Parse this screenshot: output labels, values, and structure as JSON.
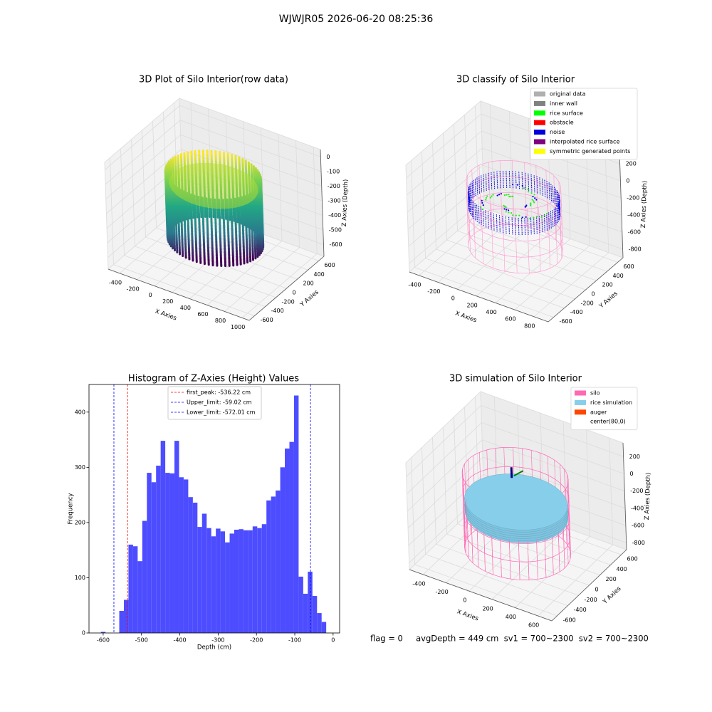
{
  "title": "WJWJR05 2026-06-20 08:25:36",
  "footer": "flag = 0     avgDepth = 449 cm  sv1 = 700~2300  sv2 = 700~2300",
  "chart_data": [
    {
      "type": "scatter3d",
      "title": "3D Plot of Silo Interior(row data)",
      "xlabel": "X Axies",
      "ylabel": "Y Axies",
      "zlabel": "Z Axies (Depth)",
      "xlim": [
        -530,
        1080
      ],
      "ylim": [
        -700,
        700
      ],
      "zlim": [
        -680,
        50
      ],
      "xticks": [
        -400,
        -200,
        0,
        200,
        400,
        600,
        800,
        1000
      ],
      "yticks": [
        -600,
        -400,
        -200,
        0,
        200,
        400,
        600
      ],
      "zticks": [
        -600,
        -500,
        -400,
        -300,
        -200,
        -100,
        0
      ]
    },
    {
      "type": "scatter3d",
      "title": "3D classify of Silo Interior",
      "xlabel": "X Axies",
      "ylabel": "Y Axies",
      "zlabel": "Z Axies (Depth)",
      "xlim": [
        -500,
        950
      ],
      "ylim": [
        -700,
        700
      ],
      "zlim": [
        -900,
        350
      ],
      "xticks": [
        -400,
        -200,
        0,
        200,
        400,
        600,
        800
      ],
      "yticks": [
        -600,
        -400,
        -200,
        0,
        200,
        400,
        600
      ],
      "zticks": [
        -800,
        -600,
        -400,
        -200,
        0,
        200
      ],
      "legend": [
        {
          "name": "original data",
          "color": "#b0b0b0"
        },
        {
          "name": "inner wall",
          "color": "#808080"
        },
        {
          "name": "rice surface",
          "color": "#00ff00"
        },
        {
          "name": "obstacle",
          "color": "#ff0000"
        },
        {
          "name": "noise",
          "color": "#0000dd"
        },
        {
          "name": "interpolated rice surface",
          "color": "#800080"
        },
        {
          "name": "symmetric generated points",
          "color": "#ffff00"
        }
      ]
    },
    {
      "type": "histogram",
      "title": "Histogram of Z-Axies (Height) Values",
      "xlabel": "Depth (cm)",
      "ylabel": "Frequency",
      "color": "#4d4dff",
      "xlim": [
        -637,
        17
      ],
      "ylim": [
        0,
        450
      ],
      "xticks": [
        -600,
        -500,
        -400,
        -300,
        -200,
        -100,
        0
      ],
      "yticks": [
        0,
        100,
        200,
        300,
        400
      ],
      "bins": [
        -606,
        -594,
        -582,
        -570,
        -558,
        -546,
        -534,
        -522,
        -510,
        -498,
        -486,
        -474,
        -462,
        -450,
        -438,
        -426,
        -414,
        -402,
        -390,
        -378,
        -366,
        -354,
        -342,
        -330,
        -318,
        -306,
        -294,
        -282,
        -270,
        -258,
        -246,
        -234,
        -222,
        -210,
        -198,
        -186,
        -174,
        -162,
        -150,
        -138,
        -126,
        -114,
        -102,
        -90,
        -78,
        -66,
        -54,
        -42,
        -30,
        -18,
        -6
      ],
      "values": [
        2,
        0,
        0,
        0,
        40,
        60,
        160,
        157,
        130,
        203,
        290,
        273,
        303,
        348,
        290,
        289,
        348,
        282,
        278,
        246,
        236,
        192,
        216,
        190,
        175,
        189,
        184,
        164,
        180,
        187,
        188,
        186,
        186,
        193,
        190,
        197,
        240,
        247,
        258,
        300,
        334,
        346,
        430,
        102,
        71,
        111,
        67,
        36,
        20,
        0
      ],
      "lines": [
        {
          "name": "first_peak: -536.22 cm",
          "value": -536.22,
          "color": "#ff0000"
        },
        {
          "name": "Upper_limit: -59.02 cm",
          "value": -59.02,
          "color": "#0000ff"
        },
        {
          "name": "Lower_limit: -572.01 cm",
          "value": -572.01,
          "color": "#0000ff"
        }
      ]
    },
    {
      "type": "surface3d",
      "title": "3D simulation of Silo Interior",
      "xlabel": "X Axies",
      "ylabel": "Y Axies",
      "zlabel": "Z Axies (Depth)",
      "xlim": [
        -520,
        720
      ],
      "ylim": [
        -700,
        700
      ],
      "zlim": [
        -880,
        360
      ],
      "xticks": [
        -400,
        -200,
        0,
        200,
        400,
        600
      ],
      "yticks": [
        -600,
        -400,
        -200,
        0,
        200,
        400,
        600
      ],
      "zticks": [
        -800,
        -600,
        -400,
        -200,
        0,
        200
      ],
      "legend": [
        {
          "name": "silo",
          "color": "#ff69b4"
        },
        {
          "name": "rice simulation",
          "color": "#87ceeb"
        },
        {
          "name": "auger",
          "color": "#ff4500"
        },
        {
          "name": "center(80,0)",
          "color": "#ffffff"
        }
      ]
    }
  ]
}
